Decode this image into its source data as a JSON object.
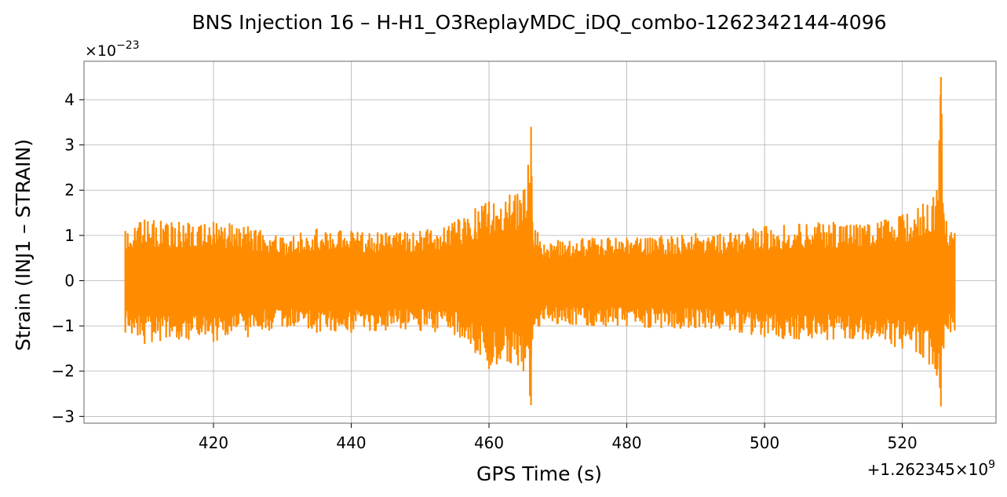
{
  "chart_data": {
    "type": "line",
    "title": "BNS Injection 16 – H-H1_O3ReplayMDC_iDQ_combo-1262342144-4096",
    "xlabel": "GPS Time (s)",
    "ylabel": "Strain (INJ1 – STRAIN)",
    "x_offset_label_prefix": "+1.262345×10",
    "x_offset_label_exp": "9",
    "y_scale_label_prefix": "×10",
    "y_scale_label_exp": "−23",
    "xlim": [
      1262345401.2,
      1262345533.6
    ],
    "ylim": [
      -3.15,
      4.85
    ],
    "x_ticks": [
      1262345420,
      1262345440,
      1262345460,
      1262345480,
      1262345500,
      1262345520
    ],
    "x_tick_labels": [
      "420",
      "440",
      "460",
      "480",
      "500",
      "520"
    ],
    "y_ticks": [
      -3,
      -2,
      -1,
      0,
      1,
      2,
      3,
      4
    ],
    "y_tick_labels": [
      "−3",
      "−2",
      "−1",
      "0",
      "1",
      "2",
      "3",
      "4"
    ],
    "grid": true,
    "line_color": "#ff8c00",
    "series": [
      {
        "x": [
          1262345407.2,
          1262345410,
          1262345415,
          1262345420,
          1262345425,
          1262345430,
          1262345435,
          1262345440,
          1262345445,
          1262345450,
          1262345455,
          1262345458,
          1262345460,
          1262345463,
          1262345465,
          1262345466.1,
          1262345466.3,
          1262345468,
          1262345470,
          1262345475,
          1262345480,
          1262345485,
          1262345490,
          1262345495,
          1262345500,
          1262345505,
          1262345510,
          1262345515,
          1262345520,
          1262345523,
          1262345525,
          1262345525.6,
          1262345526,
          1262345527.6
        ],
        "upper": [
          1.1,
          1.35,
          1.3,
          1.3,
          1.2,
          0.95,
          1.15,
          1.1,
          1.05,
          1.1,
          1.3,
          1.6,
          1.75,
          1.9,
          2.0,
          3.4,
          1.3,
          0.8,
          0.9,
          0.95,
          0.95,
          1.0,
          1.05,
          1.05,
          1.2,
          1.25,
          1.3,
          1.25,
          1.45,
          1.7,
          2.0,
          4.5,
          1.5,
          1.05
        ],
        "lower": [
          -1.15,
          -1.4,
          -1.3,
          -1.35,
          -1.25,
          -1.0,
          -1.15,
          -1.15,
          -1.1,
          -1.1,
          -1.2,
          -1.6,
          -1.95,
          -1.8,
          -2.0,
          -2.75,
          -1.3,
          -0.85,
          -0.95,
          -1.0,
          -1.0,
          -1.05,
          -1.05,
          -1.1,
          -1.25,
          -1.3,
          -1.3,
          -1.3,
          -1.5,
          -1.7,
          -2.1,
          -2.78,
          -1.5,
          -1.1
        ]
      }
    ]
  }
}
